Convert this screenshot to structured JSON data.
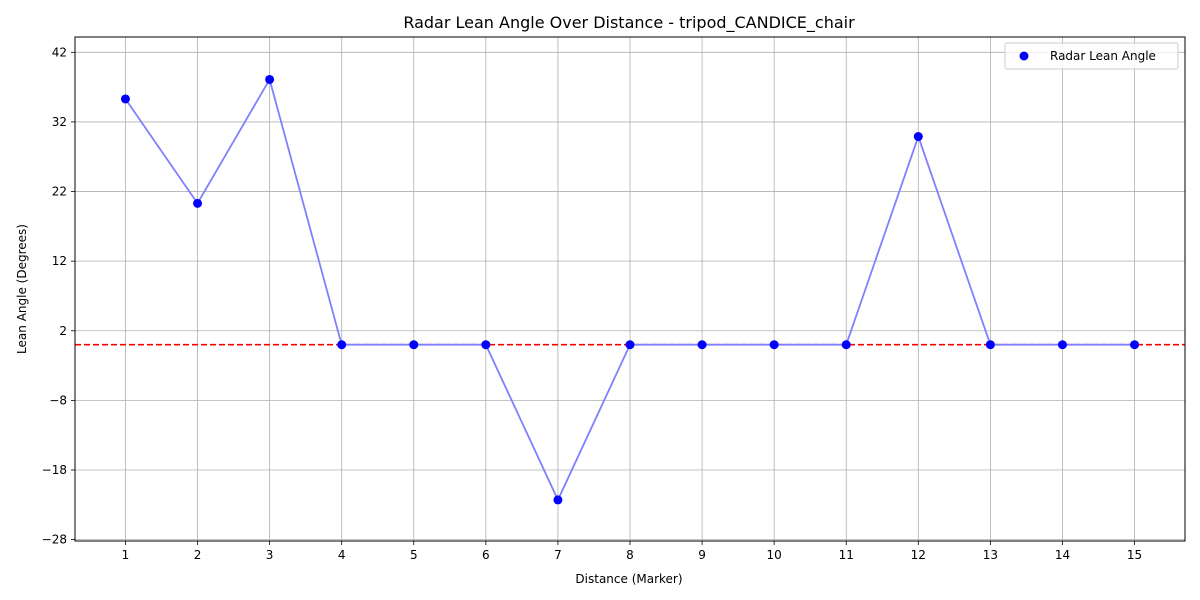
{
  "chart_data": {
    "type": "scatter",
    "title": "Radar Lean Angle Over Distance - tripod_CANDICE_chair",
    "xlabel": "Distance (Marker)",
    "ylabel": "Lean Angle (Degrees)",
    "x": [
      1,
      2,
      3,
      4,
      5,
      6,
      7,
      8,
      9,
      10,
      11,
      12,
      13,
      14,
      15
    ],
    "series": [
      {
        "name": "Radar Lean Angle",
        "values": [
          35.3,
          20.3,
          38.1,
          0.0,
          0.0,
          0.0,
          -22.3,
          0.0,
          0.0,
          0.0,
          0.0,
          29.9,
          0.0,
          0.0,
          0.0
        ],
        "marker_color": "#0000ff",
        "line_color": "#8080ff",
        "connect_points": true
      }
    ],
    "reference_line": {
      "y": 0.0,
      "color": "#ff0000",
      "style": "dashed"
    },
    "xlim": [
      0.3,
      15.7
    ],
    "ylim": [
      -28.2,
      44.2
    ],
    "x_ticks": [
      "1",
      "2",
      "3",
      "4",
      "5",
      "6",
      "7",
      "8",
      "9",
      "10",
      "11",
      "12",
      "13",
      "14",
      "15"
    ],
    "y_ticks": [
      -28,
      -18,
      -8,
      2,
      12,
      22,
      32,
      42
    ],
    "y_tick_labels": [
      "−28",
      "−18",
      "−8",
      "2",
      "12",
      "22",
      "32",
      "42"
    ],
    "grid": true,
    "legend_position": "top-right"
  }
}
